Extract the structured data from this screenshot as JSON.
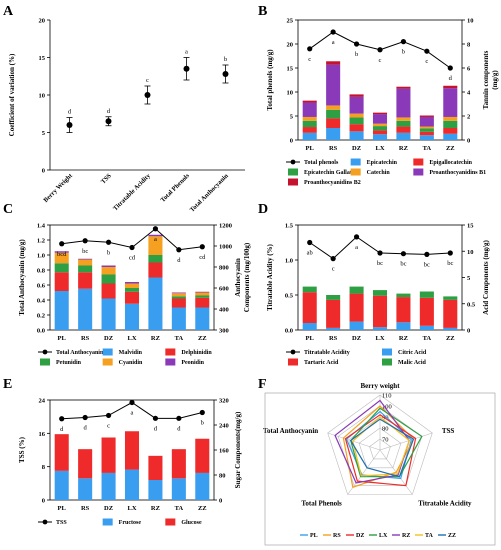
{
  "colors": {
    "blue": "#3a9ef0",
    "red": "#ee2a2a",
    "green": "#2ea043",
    "orange": "#f5a020",
    "purple": "#8a3ab8",
    "darkred": "#c4122f",
    "line": "#000000"
  },
  "chart_data": [
    {
      "id": "A",
      "type": "scatter",
      "ylabel": "Coefficient of variation (%)",
      "ylim": [
        0,
        20
      ],
      "yticks": [
        "0",
        "5",
        "10",
        "15",
        "20"
      ],
      "categories": [
        "Berry Weight",
        "TSS",
        "Titratable Acidity",
        "Total Phenols",
        "Total Anthocyanin"
      ],
      "values": [
        6.0,
        6.5,
        10.0,
        13.5,
        12.8
      ],
      "errors": [
        1.0,
        0.6,
        1.2,
        1.5,
        1.2
      ],
      "letters": [
        "d",
        "d",
        "c",
        "a",
        "b"
      ]
    },
    {
      "id": "B",
      "type": "bar",
      "ylabel": "Total phenols (mg/g)",
      "y2label": "Tannin components",
      "y2unit": "(mg/g)",
      "ylim": [
        0,
        25
      ],
      "yticks": [
        "0",
        "5",
        "10",
        "15",
        "20",
        "25"
      ],
      "y2ticks": [
        "0",
        "2",
        "4",
        "6",
        "8",
        "10"
      ],
      "categories": [
        "PL",
        "RS",
        "DZ",
        "LX",
        "RZ",
        "TA",
        "ZZ"
      ],
      "series": [
        {
          "name": "Epicatechin",
          "color": "#3a9ef0",
          "values": [
            1.5,
            2.5,
            1.8,
            1.2,
            1.5,
            1.0,
            1.3
          ]
        },
        {
          "name": "Epigallocatechin",
          "color": "#ee2a2a",
          "values": [
            1.2,
            2.0,
            1.5,
            0.8,
            1.3,
            0.7,
            1.2
          ]
        },
        {
          "name": "Epicatechin Gallate",
          "color": "#2ea043",
          "values": [
            1.3,
            1.8,
            1.4,
            0.9,
            1.2,
            0.7,
            1.5
          ]
        },
        {
          "name": "Catechin",
          "color": "#f5a020",
          "values": [
            0.8,
            0.9,
            0.8,
            0.5,
            0.7,
            0.4,
            0.8
          ]
        },
        {
          "name": "Proanthocyanidins B1",
          "color": "#8a3ab8",
          "values": [
            3.0,
            8.5,
            3.5,
            2.0,
            6.0,
            2.0,
            6.0
          ]
        },
        {
          "name": "Proanthocyanidins B2",
          "color": "#c4122f",
          "values": [
            0.4,
            0.7,
            0.5,
            0.3,
            0.4,
            0.3,
            0.5
          ]
        }
      ],
      "line": {
        "name": "Total phenols",
        "values": [
          19.0,
          22.5,
          20.0,
          18.8,
          20.5,
          18.5,
          15.0
        ],
        "letters": [
          "c",
          "a",
          "b",
          "c",
          "b",
          "c",
          "d"
        ]
      }
    },
    {
      "id": "C",
      "type": "bar",
      "ylabel": "Total Anthocyanin (mg/g)",
      "y2label": "Anthocyanin",
      "y2label2": "Components (mg/100g)",
      "ylim": [
        0,
        1.4
      ],
      "yticks": [
        "0.0",
        "0.2",
        "0.4",
        "0.6",
        "0.8",
        "1.0",
        "1.2",
        "1.4"
      ],
      "y2ticks": [
        "300",
        "400",
        "600",
        "800",
        "1000",
        "1200"
      ],
      "categories": [
        "PL",
        "RS",
        "DZ",
        "LX",
        "RZ",
        "TA",
        "ZZ"
      ],
      "series": [
        {
          "name": "Malvidin",
          "color": "#3a9ef0",
          "values": [
            0.52,
            0.55,
            0.42,
            0.35,
            0.7,
            0.3,
            0.3
          ]
        },
        {
          "name": "Delphinidin",
          "color": "#ee2a2a",
          "values": [
            0.25,
            0.22,
            0.2,
            0.16,
            0.2,
            0.12,
            0.13
          ]
        },
        {
          "name": "Petunidin",
          "color": "#2ea043",
          "values": [
            0.12,
            0.09,
            0.12,
            0.05,
            0.1,
            0.03,
            0.03
          ]
        },
        {
          "name": "Cyanidin",
          "color": "#f5a020",
          "values": [
            0.14,
            0.08,
            0.1,
            0.06,
            0.25,
            0.04,
            0.04
          ]
        },
        {
          "name": "Peonidin",
          "color": "#8a3ab8",
          "values": [
            0.02,
            0.01,
            0.02,
            0.02,
            0.02,
            0.01,
            0.01
          ]
        }
      ],
      "line": {
        "name": "Total Anthocyanin",
        "values": [
          1.15,
          1.19,
          1.17,
          1.1,
          1.35,
          1.07,
          1.11
        ],
        "letters": [
          "bcd",
          "bc",
          "b",
          "cd",
          "a",
          "d",
          "cd"
        ]
      }
    },
    {
      "id": "D",
      "type": "bar",
      "ylabel": "Titratable Acidity (%)",
      "y2label": "Acid Components (mg/g)",
      "ylim": [
        0,
        1.5
      ],
      "yticks": [
        "0.0",
        "0.5",
        "1.0",
        "1.5"
      ],
      "y2ticks": [
        "0",
        "0.5",
        "5",
        "10",
        "15"
      ],
      "categories": [
        "PL",
        "RS",
        "DZ",
        "LX",
        "RZ",
        "TA",
        "ZZ"
      ],
      "series": [
        {
          "name": "Citric Acid",
          "color": "#3a9ef0",
          "values": [
            0.1,
            0.03,
            0.12,
            0.04,
            0.11,
            0.06,
            0.03
          ]
        },
        {
          "name": "Tartaric Acid",
          "color": "#ee2a2a",
          "values": [
            0.44,
            0.4,
            0.4,
            0.45,
            0.36,
            0.4,
            0.4
          ]
        },
        {
          "name": "Malic Acid",
          "color": "#2ea043",
          "values": [
            0.08,
            0.07,
            0.1,
            0.08,
            0.05,
            0.09,
            0.05
          ]
        }
      ],
      "line": {
        "name": "Titratable Acidity",
        "values": [
          1.25,
          1.02,
          1.33,
          1.1,
          1.09,
          1.08,
          1.1
        ],
        "letters": [
          "ab",
          "c",
          "a",
          "bc",
          "bc",
          "bc",
          "bc"
        ]
      }
    },
    {
      "id": "E",
      "type": "bar",
      "ylabel": "TSS  (%)",
      "y2label": "Sugar Components(mg/g)",
      "ylim": [
        0,
        24
      ],
      "yticks": [
        "0",
        "8",
        "16",
        "24"
      ],
      "y2ticks": [
        "0",
        "80",
        "160",
        "240",
        "320"
      ],
      "categories": [
        "PL",
        "RS",
        "DZ",
        "LX",
        "RZ",
        "TA",
        "ZZ"
      ],
      "series": [
        {
          "name": "Fructose",
          "color": "#3a9ef0",
          "values": [
            7.0,
            5.2,
            6.5,
            7.3,
            4.8,
            5.2,
            6.5
          ]
        },
        {
          "name": "Glucose",
          "color": "#ee2a2a",
          "values": [
            8.8,
            7.0,
            8.5,
            9.2,
            5.8,
            7.0,
            8.2
          ]
        }
      ],
      "line": {
        "name": "TSS",
        "values": [
          19.5,
          19.8,
          20.3,
          23.4,
          19.6,
          19.6,
          21.0
        ],
        "letters": [
          "d",
          "d",
          "c",
          "a",
          "d",
          "d",
          "b"
        ]
      }
    },
    {
      "id": "F",
      "type": "radar",
      "axes": [
        "Berry weight",
        "TSS",
        "Titratable Acidity",
        "Total Phenols",
        "Total Anthocyanin"
      ],
      "rticks": [
        "70",
        "80",
        "90",
        "100",
        "110"
      ],
      "rrange": [
        60,
        110
      ],
      "series": [
        {
          "name": "PL",
          "color": "#3a9ef0",
          "values": [
            95,
            90,
            92,
            88,
            92
          ]
        },
        {
          "name": "RS",
          "color": "#f5a020",
          "values": [
            100,
            92,
            85,
            102,
            95
          ]
        },
        {
          "name": "DZ",
          "color": "#ee2a2a",
          "values": [
            92,
            94,
            100,
            95,
            93
          ]
        },
        {
          "name": "LX",
          "color": "#2ea043",
          "values": [
            98,
            100,
            90,
            90,
            88
          ]
        },
        {
          "name": "RZ",
          "color": "#8a3ab8",
          "values": [
            105,
            88,
            88,
            97,
            103
          ]
        },
        {
          "name": "TA",
          "color": "#f5c020",
          "values": [
            90,
            88,
            87,
            89,
            86
          ]
        },
        {
          "name": "ZZ",
          "color": "#1f6fb0",
          "values": [
            88,
            92,
            90,
            80,
            88
          ]
        }
      ]
    }
  ],
  "panels": {
    "A": "A",
    "B": "B",
    "C": "C",
    "D": "D",
    "E": "E",
    "F": "F"
  }
}
